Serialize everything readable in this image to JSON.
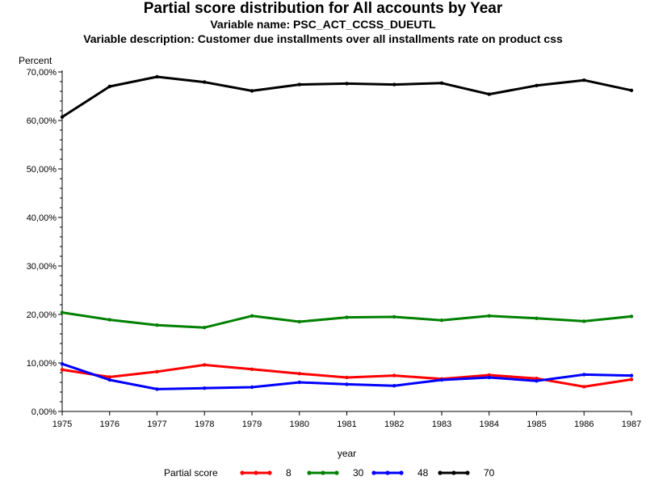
{
  "chart_data": {
    "type": "line",
    "title": "Partial score distribution for All accounts by Year",
    "subtitle": "Variable name: PSC_ACT_CCSS_DUEUTL",
    "description": "Variable description: Customer due installments over all installments rate on product css",
    "ylabel": "Percent",
    "xlabel": "year",
    "legend_title": "Partial score",
    "legend_position": "bottom",
    "ylim": [
      0,
      70
    ],
    "yticks": [
      "0,00%",
      "10,00%",
      "20,00%",
      "30,00%",
      "40,00%",
      "50,00%",
      "60,00%",
      "70,00%"
    ],
    "ytick_values": [
      0,
      10,
      20,
      30,
      40,
      50,
      60,
      70
    ],
    "x": [
      1975,
      1976,
      1977,
      1978,
      1979,
      1980,
      1981,
      1982,
      1983,
      1984,
      1985,
      1986,
      1987
    ],
    "grid": false,
    "series": [
      {
        "name": "8",
        "color": "#ff0000",
        "values": [
          8.6,
          7.1,
          8.2,
          9.6,
          8.7,
          7.8,
          7.0,
          7.4,
          6.7,
          7.5,
          6.8,
          5.1,
          6.6
        ]
      },
      {
        "name": "30",
        "color": "#008000",
        "values": [
          20.4,
          18.9,
          17.8,
          17.3,
          19.7,
          18.5,
          19.4,
          19.5,
          18.8,
          19.7,
          19.2,
          18.6,
          19.6
        ]
      },
      {
        "name": "48",
        "color": "#0000ff",
        "values": [
          9.8,
          6.5,
          4.6,
          4.8,
          5.0,
          6.0,
          5.6,
          5.3,
          6.5,
          7.0,
          6.3,
          7.6,
          7.4
        ]
      },
      {
        "name": "70",
        "color": "#000000",
        "values": [
          60.7,
          67.0,
          69.0,
          67.9,
          66.1,
          67.4,
          67.6,
          67.4,
          67.7,
          65.4,
          67.2,
          68.3,
          66.2
        ]
      }
    ]
  }
}
